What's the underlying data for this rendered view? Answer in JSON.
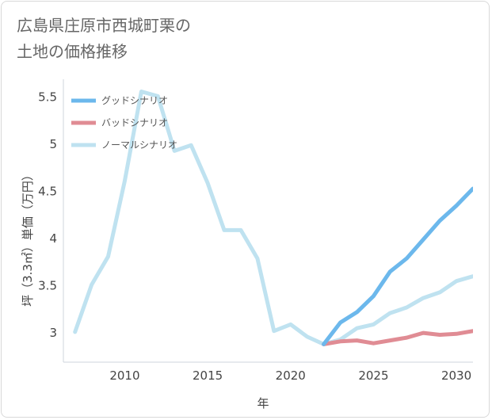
{
  "title": "広島県庄原市西城町栗の\n土地の価格推移",
  "chart_data": {
    "type": "line",
    "title": "広島県庄原市西城町栗の土地の価格推移",
    "xlabel": "年",
    "ylabel": "坪（3.3㎡）単価（万円）",
    "xlim": [
      2006.3,
      2031
    ],
    "ylim": [
      2.68,
      5.68
    ],
    "xticks": [
      2010,
      2015,
      2020,
      2025,
      2030
    ],
    "yticks": [
      3,
      3.5,
      4,
      4.5,
      5,
      5.5
    ],
    "xtick_labels": [
      "2010",
      "2015",
      "2020",
      "2025",
      "2030"
    ],
    "ytick_labels": [
      "3",
      "3.5",
      "4",
      "4.5",
      "5",
      "5.5"
    ],
    "grid": true,
    "legend_position": "top-left",
    "series": [
      {
        "name": "グッドシナリオ",
        "color": "#6cb8ec",
        "x": [
          2022,
          2023,
          2024,
          2025,
          2026,
          2027,
          2028,
          2029,
          2030,
          2031
        ],
        "y": [
          2.87,
          3.1,
          3.21,
          3.38,
          3.64,
          3.78,
          3.98,
          4.18,
          4.34,
          4.52
        ]
      },
      {
        "name": "バッドシナリオ",
        "color": "#e08c94",
        "x": [
          2022,
          2023,
          2024,
          2025,
          2026,
          2027,
          2028,
          2029,
          2030,
          2031
        ],
        "y": [
          2.87,
          2.9,
          2.91,
          2.88,
          2.91,
          2.94,
          2.99,
          2.97,
          2.98,
          3.01
        ]
      },
      {
        "name": "ノーマルシナリオ",
        "color": "#bfe2f0",
        "x": [
          2007,
          2008,
          2009,
          2010,
          2011,
          2012,
          2013,
          2014,
          2015,
          2016,
          2017,
          2018,
          2019,
          2020,
          2021,
          2022,
          2023,
          2024,
          2025,
          2026,
          2027,
          2028,
          2029,
          2030,
          2031
        ],
        "y": [
          3.0,
          3.5,
          3.8,
          4.6,
          5.55,
          5.5,
          4.92,
          4.98,
          4.58,
          4.08,
          4.08,
          3.78,
          3.01,
          3.08,
          2.95,
          2.87,
          2.92,
          3.04,
          3.08,
          3.2,
          3.26,
          3.36,
          3.42,
          3.54,
          3.59
        ]
      }
    ]
  }
}
